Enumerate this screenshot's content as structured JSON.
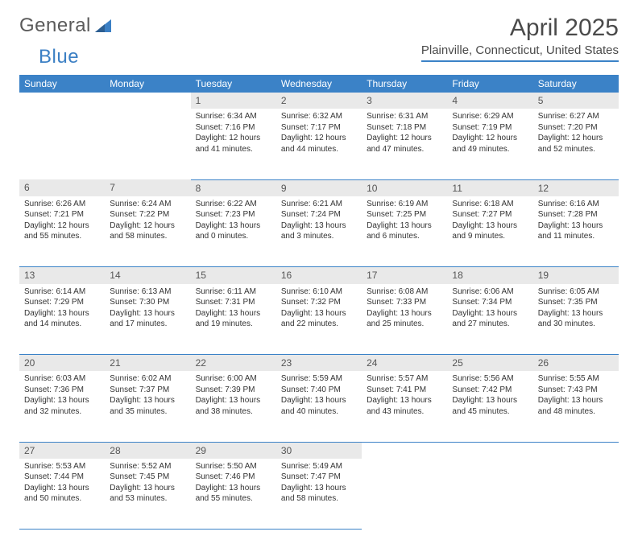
{
  "logo": {
    "word1": "General",
    "word2": "Blue"
  },
  "title": "April 2025",
  "location": "Plainville, Connecticut, United States",
  "colors": {
    "header_bg": "#3b82c7",
    "header_text": "#ffffff",
    "daynum_bg": "#e9e9e9",
    "border": "#3b82c7",
    "body_text": "#333333"
  },
  "weekday_headers": [
    "Sunday",
    "Monday",
    "Tuesday",
    "Wednesday",
    "Thursday",
    "Friday",
    "Saturday"
  ],
  "weeks": [
    [
      null,
      null,
      {
        "n": "1",
        "sunrise": "6:34 AM",
        "sunset": "7:16 PM",
        "day_h": "12",
        "day_m": "41"
      },
      {
        "n": "2",
        "sunrise": "6:32 AM",
        "sunset": "7:17 PM",
        "day_h": "12",
        "day_m": "44"
      },
      {
        "n": "3",
        "sunrise": "6:31 AM",
        "sunset": "7:18 PM",
        "day_h": "12",
        "day_m": "47"
      },
      {
        "n": "4",
        "sunrise": "6:29 AM",
        "sunset": "7:19 PM",
        "day_h": "12",
        "day_m": "49"
      },
      {
        "n": "5",
        "sunrise": "6:27 AM",
        "sunset": "7:20 PM",
        "day_h": "12",
        "day_m": "52"
      }
    ],
    [
      {
        "n": "6",
        "sunrise": "6:26 AM",
        "sunset": "7:21 PM",
        "day_h": "12",
        "day_m": "55"
      },
      {
        "n": "7",
        "sunrise": "6:24 AM",
        "sunset": "7:22 PM",
        "day_h": "12",
        "day_m": "58"
      },
      {
        "n": "8",
        "sunrise": "6:22 AM",
        "sunset": "7:23 PM",
        "day_h": "13",
        "day_m": "0"
      },
      {
        "n": "9",
        "sunrise": "6:21 AM",
        "sunset": "7:24 PM",
        "day_h": "13",
        "day_m": "3"
      },
      {
        "n": "10",
        "sunrise": "6:19 AM",
        "sunset": "7:25 PM",
        "day_h": "13",
        "day_m": "6"
      },
      {
        "n": "11",
        "sunrise": "6:18 AM",
        "sunset": "7:27 PM",
        "day_h": "13",
        "day_m": "9"
      },
      {
        "n": "12",
        "sunrise": "6:16 AM",
        "sunset": "7:28 PM",
        "day_h": "13",
        "day_m": "11"
      }
    ],
    [
      {
        "n": "13",
        "sunrise": "6:14 AM",
        "sunset": "7:29 PM",
        "day_h": "13",
        "day_m": "14"
      },
      {
        "n": "14",
        "sunrise": "6:13 AM",
        "sunset": "7:30 PM",
        "day_h": "13",
        "day_m": "17"
      },
      {
        "n": "15",
        "sunrise": "6:11 AM",
        "sunset": "7:31 PM",
        "day_h": "13",
        "day_m": "19"
      },
      {
        "n": "16",
        "sunrise": "6:10 AM",
        "sunset": "7:32 PM",
        "day_h": "13",
        "day_m": "22"
      },
      {
        "n": "17",
        "sunrise": "6:08 AM",
        "sunset": "7:33 PM",
        "day_h": "13",
        "day_m": "25"
      },
      {
        "n": "18",
        "sunrise": "6:06 AM",
        "sunset": "7:34 PM",
        "day_h": "13",
        "day_m": "27"
      },
      {
        "n": "19",
        "sunrise": "6:05 AM",
        "sunset": "7:35 PM",
        "day_h": "13",
        "day_m": "30"
      }
    ],
    [
      {
        "n": "20",
        "sunrise": "6:03 AM",
        "sunset": "7:36 PM",
        "day_h": "13",
        "day_m": "32"
      },
      {
        "n": "21",
        "sunrise": "6:02 AM",
        "sunset": "7:37 PM",
        "day_h": "13",
        "day_m": "35"
      },
      {
        "n": "22",
        "sunrise": "6:00 AM",
        "sunset": "7:39 PM",
        "day_h": "13",
        "day_m": "38"
      },
      {
        "n": "23",
        "sunrise": "5:59 AM",
        "sunset": "7:40 PM",
        "day_h": "13",
        "day_m": "40"
      },
      {
        "n": "24",
        "sunrise": "5:57 AM",
        "sunset": "7:41 PM",
        "day_h": "13",
        "day_m": "43"
      },
      {
        "n": "25",
        "sunrise": "5:56 AM",
        "sunset": "7:42 PM",
        "day_h": "13",
        "day_m": "45"
      },
      {
        "n": "26",
        "sunrise": "5:55 AM",
        "sunset": "7:43 PM",
        "day_h": "13",
        "day_m": "48"
      }
    ],
    [
      {
        "n": "27",
        "sunrise": "5:53 AM",
        "sunset": "7:44 PM",
        "day_h": "13",
        "day_m": "50"
      },
      {
        "n": "28",
        "sunrise": "5:52 AM",
        "sunset": "7:45 PM",
        "day_h": "13",
        "day_m": "53"
      },
      {
        "n": "29",
        "sunrise": "5:50 AM",
        "sunset": "7:46 PM",
        "day_h": "13",
        "day_m": "55"
      },
      {
        "n": "30",
        "sunrise": "5:49 AM",
        "sunset": "7:47 PM",
        "day_h": "13",
        "day_m": "58"
      },
      null,
      null,
      null
    ]
  ],
  "labels": {
    "sunrise_prefix": "Sunrise: ",
    "sunset_prefix": "Sunset: ",
    "daylight_prefix": "Daylight: ",
    "hours_word": " hours and ",
    "minutes_word": " minutes."
  }
}
